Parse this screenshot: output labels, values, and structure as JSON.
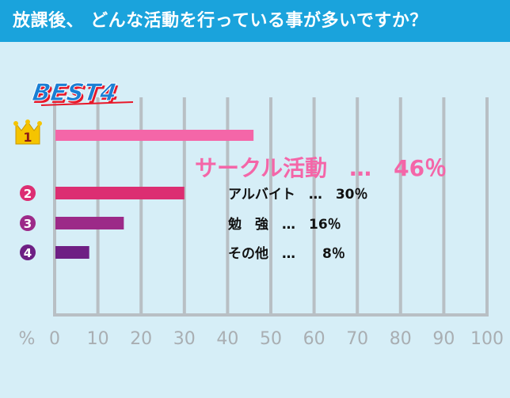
{
  "header": {
    "title": "放課後、 どんな活動を行っている事が多いですか？"
  },
  "badge": {
    "text": "BEST4"
  },
  "colors": {
    "header_bg": "#1aa3dc",
    "background": "#d6eef7",
    "grid": "#b8bfc4",
    "rank1": "#f466a8",
    "rank2": "#dc2e72",
    "rank3": "#9c2a88",
    "rank4": "#6e1f84",
    "crown": "#f5c400",
    "badge_blue": "#1a7fd4",
    "badge_red": "#e8182a"
  },
  "chart_data": {
    "type": "bar",
    "orientation": "horizontal",
    "categories": [
      "サークル活動",
      "アルバイト",
      "勉　強",
      "その他"
    ],
    "values": [
      46,
      30,
      16,
      8
    ],
    "ranks": [
      "1",
      "2",
      "3",
      "4"
    ],
    "data_labels": [
      "サークル活動　…　46％",
      "アルバイト　…　30％",
      "勉　強　…　16％",
      "その他　…　　8％"
    ],
    "xlim": [
      0,
      100
    ],
    "xticks": [
      "0",
      "10",
      "20",
      "30",
      "40",
      "50",
      "60",
      "70",
      "80",
      "90",
      "100"
    ],
    "xunit": "%",
    "grid": true
  }
}
